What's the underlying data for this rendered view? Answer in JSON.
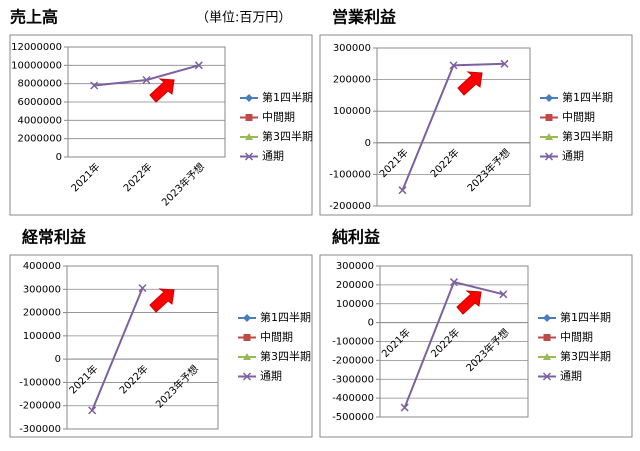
{
  "note": "（単位:百万円）",
  "chart_data": [
    {
      "type": "line",
      "title": "売上高",
      "categories": [
        "2021年",
        "2022年",
        "2023年予想"
      ],
      "series": [
        {
          "name": "第1四半期",
          "color": "#4a7ebb",
          "marker": "diamond",
          "values": [
            null,
            null,
            null
          ]
        },
        {
          "name": "中間期",
          "color": "#be4b48",
          "marker": "square",
          "values": [
            null,
            null,
            null
          ]
        },
        {
          "name": "第3四半期",
          "color": "#98b954",
          "marker": "triangle",
          "values": [
            null,
            null,
            null
          ]
        },
        {
          "name": "通期",
          "color": "#7d60a0",
          "marker": "x",
          "values": [
            7800000,
            8400000,
            10000000
          ]
        }
      ],
      "ylim": [
        0,
        12000000
      ],
      "yticks": [
        0,
        2000000,
        4000000,
        6000000,
        8000000,
        10000000,
        12000000
      ],
      "grid": true,
      "legend": "right"
    },
    {
      "type": "line",
      "title": "営業利益",
      "categories": [
        "2021年",
        "2022年",
        "2023年予想"
      ],
      "series": [
        {
          "name": "第1四半期",
          "color": "#4a7ebb",
          "marker": "diamond",
          "values": [
            null,
            null,
            null
          ]
        },
        {
          "name": "中間期",
          "color": "#be4b48",
          "marker": "square",
          "values": [
            null,
            null,
            null
          ]
        },
        {
          "name": "第3四半期",
          "color": "#98b954",
          "marker": "triangle",
          "values": [
            null,
            null,
            null
          ]
        },
        {
          "name": "通期",
          "color": "#7d60a0",
          "marker": "x",
          "values": [
            -150000,
            245000,
            250000
          ]
        }
      ],
      "ylim": [
        -200000,
        300000
      ],
      "yticks": [
        -200000,
        -100000,
        0,
        100000,
        200000,
        300000
      ],
      "grid": true,
      "legend": "right"
    },
    {
      "type": "line",
      "title": "経常利益",
      "categories": [
        "2021年",
        "2022年",
        "2023年予想"
      ],
      "series": [
        {
          "name": "第1四半期",
          "color": "#4a7ebb",
          "marker": "diamond",
          "values": [
            null,
            null,
            null
          ]
        },
        {
          "name": "中間期",
          "color": "#be4b48",
          "marker": "square",
          "values": [
            null,
            null,
            null
          ]
        },
        {
          "name": "第3四半期",
          "color": "#98b954",
          "marker": "triangle",
          "values": [
            null,
            null,
            null
          ]
        },
        {
          "name": "通期",
          "color": "#7d60a0",
          "marker": "x",
          "values": [
            -220000,
            305000,
            null
          ]
        }
      ],
      "ylim": [
        -300000,
        400000
      ],
      "yticks": [
        -300000,
        -200000,
        -100000,
        0,
        100000,
        200000,
        300000,
        400000
      ],
      "grid": true,
      "legend": "right"
    },
    {
      "type": "line",
      "title": "純利益",
      "categories": [
        "2021年",
        "2022年",
        "2023年予想"
      ],
      "series": [
        {
          "name": "第1四半期",
          "color": "#4a7ebb",
          "marker": "diamond",
          "values": [
            null,
            null,
            null
          ]
        },
        {
          "name": "中間期",
          "color": "#be4b48",
          "marker": "square",
          "values": [
            null,
            null,
            null
          ]
        },
        {
          "name": "第3四半期",
          "color": "#98b954",
          "marker": "triangle",
          "values": [
            null,
            null,
            null
          ]
        },
        {
          "name": "通期",
          "color": "#7d60a0",
          "marker": "x",
          "values": [
            -450000,
            215000,
            150000
          ]
        }
      ],
      "ylim": [
        -500000,
        300000
      ],
      "yticks": [
        -500000,
        -400000,
        -300000,
        -200000,
        -100000,
        0,
        100000,
        200000,
        300000
      ],
      "grid": true,
      "legend": "right"
    }
  ]
}
